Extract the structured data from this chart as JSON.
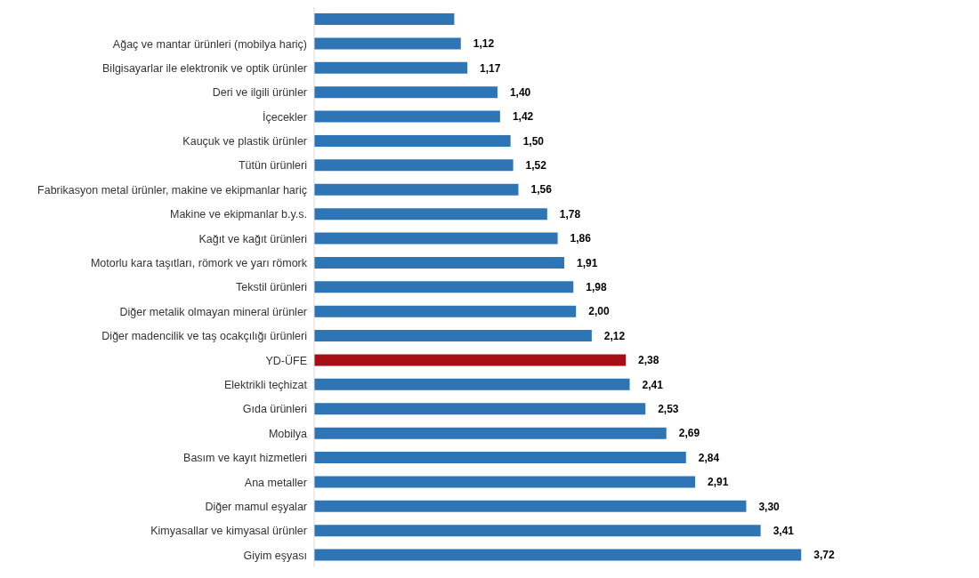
{
  "chart_data": {
    "type": "bar",
    "orientation": "horizontal",
    "categories": [
      null,
      "Ağaç ve mantar ürünleri (mobilya hariç)",
      "Bilgisayarlar ile elektronik ve optik ürünler",
      "Deri ve ilgili ürünler",
      "İçecekler",
      "Kauçuk ve plastik ürünler",
      "Tütün ürünleri",
      "Fabrikasyon metal ürünler, makine ve ekipmanlar hariç",
      "Makine ve ekipmanlar b.y.s.",
      "Kağıt ve kağıt ürünleri",
      "Motorlu kara taşıtları, römork ve yarı römork",
      "Tekstil ürünleri",
      "Diğer metalik olmayan mineral ürünler",
      "Diğer madencilik ve taş ocakçılığı ürünleri",
      "YD-ÜFE",
      "Elektrikli teçhizat",
      "Gıda ürünleri",
      "Mobilya",
      "Basım ve kayıt hizmetleri",
      "Ana metaller",
      "Diğer mamul eşyalar",
      "Kimyasallar ve kimyasal ürünler",
      "Giyim eşyası"
    ],
    "values": [
      1.07,
      1.12,
      1.17,
      1.4,
      1.42,
      1.5,
      1.52,
      1.56,
      1.78,
      1.86,
      1.91,
      1.98,
      2.0,
      2.12,
      2.38,
      2.41,
      2.53,
      2.69,
      2.84,
      2.91,
      3.3,
      3.41,
      3.72
    ],
    "value_labels": [
      null,
      "1,12",
      "1,17",
      "1,40",
      "1,42",
      "1,50",
      "1,52",
      "1,56",
      "1,78",
      "1,86",
      "1,91",
      "1,98",
      "2,00",
      "2,12",
      "2,38",
      "2,41",
      "2,53",
      "2,69",
      "2,84",
      "2,91",
      "3,30",
      "3,41",
      "3,72"
    ],
    "colors": [
      "#2e75b6",
      "#2e75b6",
      "#2e75b6",
      "#2e75b6",
      "#2e75b6",
      "#2e75b6",
      "#2e75b6",
      "#2e75b6",
      "#2e75b6",
      "#2e75b6",
      "#2e75b6",
      "#2e75b6",
      "#2e75b6",
      "#2e75b6",
      "#a50f15",
      "#2e75b6",
      "#2e75b6",
      "#2e75b6",
      "#2e75b6",
      "#2e75b6",
      "#2e75b6",
      "#2e75b6",
      "#2e75b6"
    ],
    "grid": false,
    "legend": false
  }
}
